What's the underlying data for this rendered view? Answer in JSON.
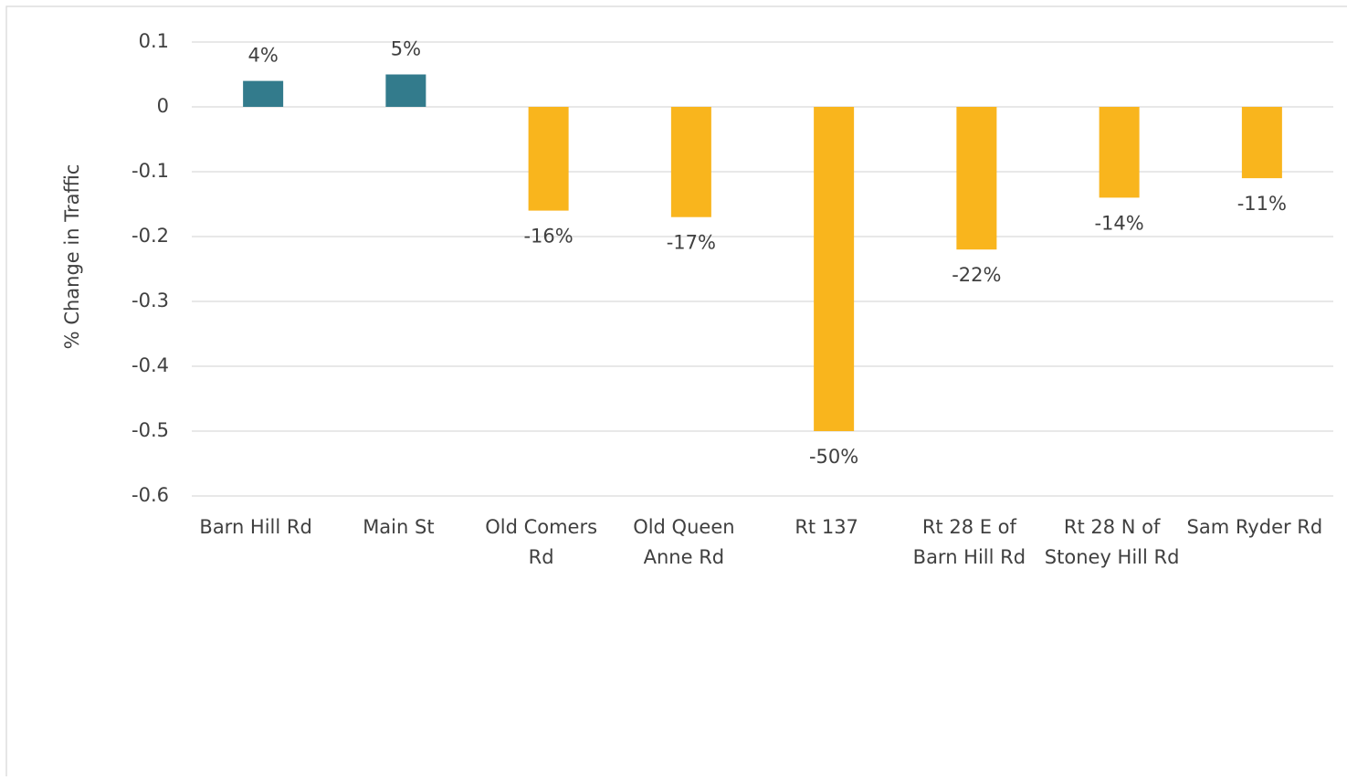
{
  "chart_data": {
    "type": "bar",
    "y_axis_label": "% Change in Traffic",
    "categories": [
      "Barn Hill Rd",
      "Main St",
      "Old Comers Rd",
      "Old Queen Anne Rd",
      "Rt 137",
      "Rt 28 E of Barn Hill Rd",
      "Rt 28 N of Stoney Hill Rd",
      "Sam Ryder Rd"
    ],
    "values": [
      0.04,
      0.05,
      -0.16,
      -0.17,
      -0.5,
      -0.22,
      -0.14,
      -0.11
    ],
    "value_labels": [
      "4%",
      "5%",
      "-16%",
      "-17%",
      "-50%",
      "-22%",
      "-14%",
      "-11%"
    ],
    "colors": [
      "#337b8c",
      "#337b8c",
      "#f9b51d",
      "#f9b51d",
      "#f9b51d",
      "#f9b51d",
      "#f9b51d",
      "#f9b51d"
    ],
    "ylim": [
      -0.6,
      0.1
    ],
    "yticks": [
      0.1,
      0,
      -0.1,
      -0.2,
      -0.3,
      -0.4,
      -0.5,
      -0.6
    ],
    "grid": true
  }
}
